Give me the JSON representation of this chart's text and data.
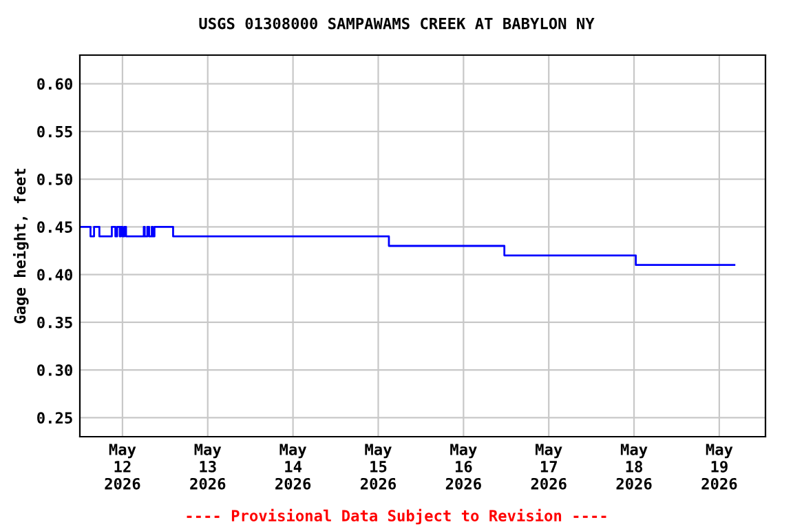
{
  "chart_data": {
    "type": "step",
    "title": "USGS 01308000 SAMPAWAMS CREEK AT BABYLON NY",
    "ylabel": "Gage height, feet",
    "annotations": [
      "---- Provisional Data Subject to Revision ----"
    ],
    "x": [
      "2026-05-11T12:00",
      "2026-05-11T15:00",
      "2026-05-11T16:00",
      "2026-05-11T17:30",
      "2026-05-11T21:00",
      "2026-05-11T22:00",
      "2026-05-11T22:30",
      "2026-05-11T23:15",
      "2026-05-11T23:30",
      "2026-05-12T00:00",
      "2026-05-12T00:30",
      "2026-05-12T01:00",
      "2026-05-12T06:00",
      "2026-05-12T06:15",
      "2026-05-12T07:00",
      "2026-05-12T07:30",
      "2026-05-12T08:15",
      "2026-05-12T08:30",
      "2026-05-12T09:00",
      "2026-05-12T14:15",
      "2026-05-15T03:00",
      "2026-05-16T11:30",
      "2026-05-18T00:30",
      "2026-05-19T04:15"
    ],
    "series": [
      {
        "color": "#0000ff",
        "values": [
          0.45,
          0.44,
          0.45,
          0.44,
          0.45,
          0.44,
          0.45,
          0.44,
          0.45,
          0.44,
          0.45,
          0.44,
          0.45,
          0.44,
          0.45,
          0.44,
          0.45,
          0.44,
          0.45,
          0.44,
          0.43,
          0.42,
          0.41,
          0.41
        ]
      }
    ],
    "xlim": [
      "2026-05-11T12:00",
      "2026-05-19T13:00"
    ],
    "xticks": [
      {
        "value": "2026-05-12",
        "label": "May\n12\n2026"
      },
      {
        "value": "2026-05-13",
        "label": "May\n13\n2026"
      },
      {
        "value": "2026-05-14",
        "label": "May\n14\n2026"
      },
      {
        "value": "2026-05-15",
        "label": "May\n15\n2026"
      },
      {
        "value": "2026-05-16",
        "label": "May\n16\n2026"
      },
      {
        "value": "2026-05-17",
        "label": "May\n17\n2026"
      },
      {
        "value": "2026-05-18",
        "label": "May\n18\n2026"
      },
      {
        "value": "2026-05-19",
        "label": "May\n19\n2026"
      }
    ],
    "ylim": [
      0.23,
      0.63
    ],
    "yticks": [
      {
        "value": 0.25,
        "label": "0.25"
      },
      {
        "value": 0.3,
        "label": "0.30"
      },
      {
        "value": 0.35,
        "label": "0.35"
      },
      {
        "value": 0.4,
        "label": "0.40"
      },
      {
        "value": 0.45,
        "label": "0.45"
      },
      {
        "value": 0.5,
        "label": "0.50"
      },
      {
        "value": 0.55,
        "label": "0.55"
      },
      {
        "value": 0.6,
        "label": "0.60"
      }
    ],
    "grid": true
  }
}
